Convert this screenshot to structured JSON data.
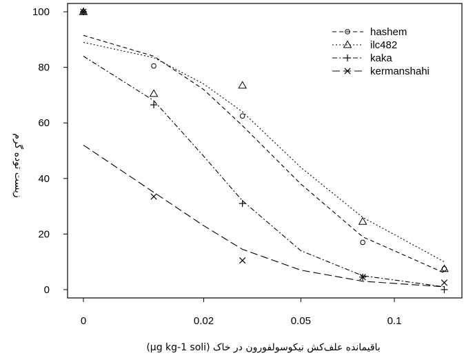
{
  "chart_data": {
    "type": "scatter",
    "title": "",
    "xlabel": "باقیمانده علف‌کش نیکوسولفورون در خاک (μg kg-1 soli)",
    "ylabel": "زیست توده گرم",
    "xticks": [
      "0",
      "0.02",
      "0.05",
      "0.1"
    ],
    "yticks": [
      "0",
      "20",
      "40",
      "60",
      "80",
      "100"
    ],
    "ylim": [
      -3,
      103
    ],
    "legend_position": "top-right",
    "grid": false,
    "series": [
      {
        "name": "hashem",
        "marker": "circle",
        "line_style": "dashed",
        "points": [
          [
            0,
            100
          ],
          [
            0.01,
            80.5
          ],
          [
            0.03,
            62.5
          ],
          [
            0.08,
            17
          ],
          [
            0.14,
            7.5
          ]
        ],
        "fit": [
          [
            0,
            91.5
          ],
          [
            0.01,
            84
          ],
          [
            0.02,
            72
          ],
          [
            0.03,
            59
          ],
          [
            0.05,
            38
          ],
          [
            0.08,
            19
          ],
          [
            0.14,
            6
          ]
        ]
      },
      {
        "name": "ilc482",
        "marker": "triangle",
        "line_style": "dotted",
        "points": [
          [
            0,
            100
          ],
          [
            0.01,
            70.5
          ],
          [
            0.03,
            73.5
          ],
          [
            0.08,
            24.5
          ],
          [
            0.14,
            7.5
          ]
        ],
        "fit": [
          [
            0,
            89
          ],
          [
            0.01,
            83.5
          ],
          [
            0.02,
            74
          ],
          [
            0.03,
            64
          ],
          [
            0.05,
            44
          ],
          [
            0.08,
            26
          ],
          [
            0.14,
            10
          ]
        ]
      },
      {
        "name": "kaka",
        "marker": "plus",
        "line_style": "dashdot",
        "points": [
          [
            0,
            100
          ],
          [
            0.01,
            66.5
          ],
          [
            0.03,
            31
          ],
          [
            0.08,
            4.5
          ],
          [
            0.14,
            0
          ]
        ],
        "fit": [
          [
            0,
            84
          ],
          [
            0.01,
            68
          ],
          [
            0.02,
            48
          ],
          [
            0.03,
            32
          ],
          [
            0.05,
            14
          ],
          [
            0.08,
            5
          ],
          [
            0.14,
            1
          ]
        ]
      },
      {
        "name": "kermanshahi",
        "marker": "cross",
        "line_style": "longdash",
        "points": [
          [
            0,
            100
          ],
          [
            0.01,
            33.5
          ],
          [
            0.03,
            10.5
          ],
          [
            0.08,
            4.5
          ],
          [
            0.14,
            2.5
          ]
        ],
        "fit": [
          [
            0,
            52
          ],
          [
            0.01,
            35
          ],
          [
            0.02,
            23
          ],
          [
            0.03,
            14.5
          ],
          [
            0.05,
            7
          ],
          [
            0.08,
            3
          ],
          [
            0.14,
            1
          ]
        ]
      }
    ]
  }
}
